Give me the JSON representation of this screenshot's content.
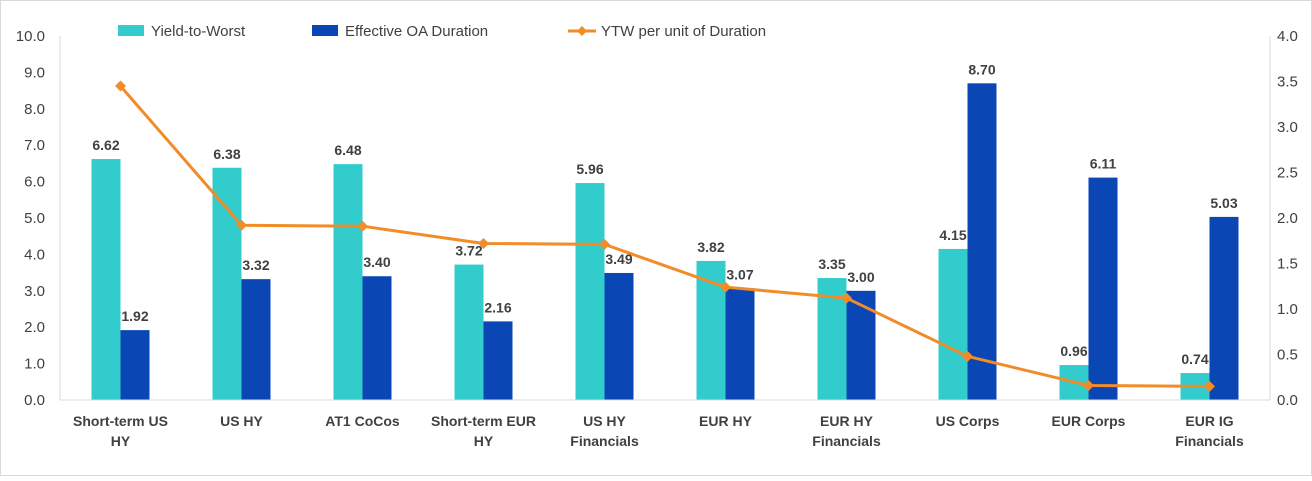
{
  "chart_data": {
    "type": "bar",
    "title": "",
    "categories": [
      [
        "Short-term US",
        "HY"
      ],
      [
        "US HY"
      ],
      [
        "AT1 CoCos"
      ],
      [
        "Short-term EUR",
        "HY"
      ],
      [
        "US HY",
        "Financials"
      ],
      [
        "EUR HY"
      ],
      [
        "EUR HY",
        "Financials"
      ],
      [
        "US Corps"
      ],
      [
        "EUR Corps"
      ],
      [
        "EUR IG",
        "Financials"
      ]
    ],
    "series": [
      {
        "name": "Yield-to-Worst",
        "kind": "bar",
        "axis": "left",
        "color": "#33CCCC",
        "values": [
          6.62,
          6.38,
          6.48,
          3.72,
          5.96,
          3.82,
          3.35,
          4.15,
          0.96,
          0.74
        ],
        "labels": [
          "6.62",
          "6.38",
          "6.48",
          "3.72",
          "5.96",
          "3.82",
          "3.35",
          "4.15",
          "0.96",
          "0.74"
        ]
      },
      {
        "name": "Effective OA Duration",
        "kind": "bar",
        "axis": "left",
        "color": "#0A47B5",
        "values": [
          1.92,
          3.32,
          3.4,
          2.16,
          3.49,
          3.07,
          3.0,
          8.7,
          6.11,
          5.03
        ],
        "labels": [
          "1.92",
          "3.32",
          "3.40",
          "2.16",
          "3.49",
          "3.07",
          "3.00",
          "8.70",
          "6.11",
          "5.03"
        ]
      },
      {
        "name": "YTW per unit of Duration",
        "kind": "line",
        "axis": "right",
        "color": "#F28C28",
        "values": [
          3.45,
          1.92,
          1.91,
          1.72,
          1.71,
          1.24,
          1.12,
          0.48,
          0.16,
          0.15
        ]
      }
    ],
    "y_left": {
      "min": 0,
      "max": 10,
      "ticks": [
        "0.0",
        "1.0",
        "2.0",
        "3.0",
        "4.0",
        "5.0",
        "6.0",
        "7.0",
        "8.0",
        "9.0",
        "10.0"
      ]
    },
    "y_right": {
      "min": 0,
      "max": 4,
      "ticks": [
        "0.0",
        "0.5",
        "1.0",
        "1.5",
        "2.0",
        "2.5",
        "3.0",
        "3.5",
        "4.0"
      ]
    },
    "xlabel": "",
    "ylabel": "",
    "grid": false,
    "legend": "top"
  }
}
